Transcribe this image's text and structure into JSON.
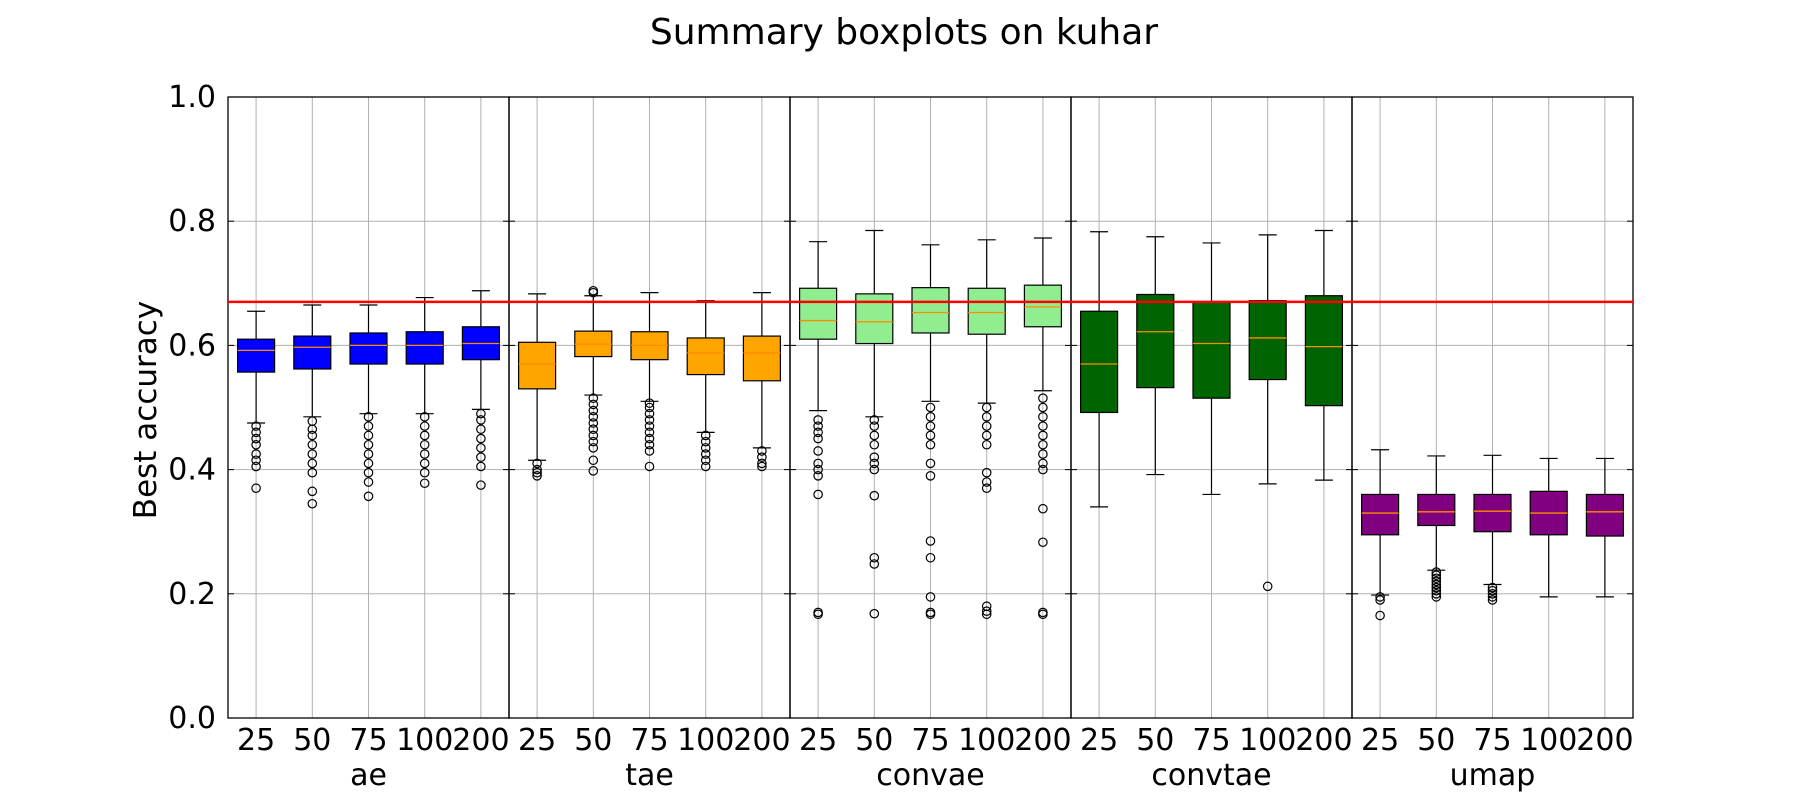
{
  "chart_data": {
    "type": "boxplot",
    "title": "Summary boxplots on kuhar",
    "ylabel": "Best accuracy",
    "xlabel": "",
    "ylim": [
      0,
      1
    ],
    "yticks": [
      "0.0",
      "0.2",
      "0.4",
      "0.6",
      "0.8",
      "1.0"
    ],
    "ytick_values": [
      0,
      0.2,
      0.4,
      0.6,
      0.8,
      1.0
    ],
    "grid": true,
    "reference_line": {
      "y": 0.67,
      "color": "#ff0000"
    },
    "categories": [
      "25",
      "50",
      "75",
      "100",
      "200"
    ],
    "groups": [
      {
        "name": "ae",
        "color": "#0000ff",
        "boxes": [
          {
            "x": "25",
            "whislo": 0.475,
            "q1": 0.557,
            "med": 0.592,
            "q3": 0.61,
            "whishi": 0.655,
            "fliers": [
              0.37,
              0.405,
              0.415,
              0.425,
              0.44,
              0.45,
              0.46,
              0.47
            ]
          },
          {
            "x": "50",
            "whislo": 0.485,
            "q1": 0.562,
            "med": 0.597,
            "q3": 0.615,
            "whishi": 0.665,
            "fliers": [
              0.345,
              0.365,
              0.395,
              0.41,
              0.425,
              0.44,
              0.455,
              0.465,
              0.478
            ]
          },
          {
            "x": "75",
            "whislo": 0.49,
            "q1": 0.57,
            "med": 0.6,
            "q3": 0.62,
            "whishi": 0.665,
            "fliers": [
              0.357,
              0.38,
              0.395,
              0.41,
              0.425,
              0.44,
              0.455,
              0.47,
              0.485
            ]
          },
          {
            "x": "100",
            "whislo": 0.49,
            "q1": 0.57,
            "med": 0.6,
            "q3": 0.622,
            "whishi": 0.677,
            "fliers": [
              0.378,
              0.395,
              0.41,
              0.425,
              0.44,
              0.455,
              0.47,
              0.485
            ]
          },
          {
            "x": "200",
            "whislo": 0.497,
            "q1": 0.577,
            "med": 0.603,
            "q3": 0.63,
            "whishi": 0.688,
            "fliers": [
              0.375,
              0.405,
              0.42,
              0.435,
              0.45,
              0.465,
              0.48,
              0.49
            ]
          }
        ]
      },
      {
        "name": "tae",
        "color": "#ffa500",
        "boxes": [
          {
            "x": "25",
            "whislo": 0.415,
            "q1": 0.53,
            "med": 0.57,
            "q3": 0.605,
            "whishi": 0.683,
            "fliers": [
              0.39,
              0.395,
              0.4,
              0.41
            ]
          },
          {
            "x": "50",
            "whislo": 0.52,
            "q1": 0.582,
            "med": 0.602,
            "q3": 0.623,
            "whishi": 0.68,
            "fliers": [
              0.398,
              0.415,
              0.435,
              0.445,
              0.455,
              0.465,
              0.475,
              0.485,
              0.495,
              0.505,
              0.515,
              0.685,
              0.688
            ]
          },
          {
            "x": "75",
            "whislo": 0.51,
            "q1": 0.577,
            "med": 0.6,
            "q3": 0.622,
            "whishi": 0.685,
            "fliers": [
              0.405,
              0.43,
              0.44,
              0.45,
              0.46,
              0.47,
              0.48,
              0.49,
              0.5,
              0.507
            ]
          },
          {
            "x": "100",
            "whislo": 0.46,
            "q1": 0.553,
            "med": 0.588,
            "q3": 0.612,
            "whishi": 0.672,
            "fliers": [
              0.405,
              0.415,
              0.425,
              0.435,
              0.445,
              0.455
            ]
          },
          {
            "x": "200",
            "whislo": 0.435,
            "q1": 0.543,
            "med": 0.588,
            "q3": 0.615,
            "whishi": 0.685,
            "fliers": [
              0.405,
              0.41,
              0.42,
              0.43
            ]
          }
        ]
      },
      {
        "name": "convae",
        "color": "#90ee90",
        "boxes": [
          {
            "x": "25",
            "whislo": 0.495,
            "q1": 0.61,
            "med": 0.64,
            "q3": 0.692,
            "whishi": 0.767,
            "fliers": [
              0.167,
              0.17,
              0.36,
              0.39,
              0.4,
              0.41,
              0.43,
              0.45,
              0.46,
              0.47,
              0.48
            ]
          },
          {
            "x": "50",
            "whislo": 0.485,
            "q1": 0.603,
            "med": 0.638,
            "q3": 0.683,
            "whishi": 0.785,
            "fliers": [
              0.168,
              0.248,
              0.258,
              0.358,
              0.4,
              0.41,
              0.42,
              0.44,
              0.455,
              0.47,
              0.48
            ]
          },
          {
            "x": "75",
            "whislo": 0.51,
            "q1": 0.62,
            "med": 0.653,
            "q3": 0.693,
            "whishi": 0.762,
            "fliers": [
              0.167,
              0.17,
              0.195,
              0.258,
              0.285,
              0.39,
              0.41,
              0.44,
              0.455,
              0.47,
              0.485,
              0.5
            ]
          },
          {
            "x": "100",
            "whislo": 0.507,
            "q1": 0.618,
            "med": 0.653,
            "q3": 0.692,
            "whishi": 0.77,
            "fliers": [
              0.167,
              0.172,
              0.18,
              0.37,
              0.38,
              0.395,
              0.44,
              0.455,
              0.47,
              0.485,
              0.5
            ]
          },
          {
            "x": "200",
            "whislo": 0.527,
            "q1": 0.63,
            "med": 0.662,
            "q3": 0.697,
            "whishi": 0.773,
            "fliers": [
              0.167,
              0.17,
              0.283,
              0.337,
              0.4,
              0.41,
              0.425,
              0.44,
              0.455,
              0.47,
              0.485,
              0.5,
              0.515
            ]
          }
        ]
      },
      {
        "name": "convtae",
        "color": "#006400",
        "boxes": [
          {
            "x": "25",
            "whislo": 0.34,
            "q1": 0.492,
            "med": 0.57,
            "q3": 0.655,
            "whishi": 0.783,
            "fliers": []
          },
          {
            "x": "50",
            "whislo": 0.392,
            "q1": 0.532,
            "med": 0.622,
            "q3": 0.682,
            "whishi": 0.775,
            "fliers": []
          },
          {
            "x": "75",
            "whislo": 0.36,
            "q1": 0.515,
            "med": 0.603,
            "q3": 0.67,
            "whishi": 0.765,
            "fliers": []
          },
          {
            "x": "100",
            "whislo": 0.377,
            "q1": 0.545,
            "med": 0.612,
            "q3": 0.672,
            "whishi": 0.778,
            "fliers": [
              0.212
            ]
          },
          {
            "x": "200",
            "whislo": 0.383,
            "q1": 0.503,
            "med": 0.598,
            "q3": 0.68,
            "whishi": 0.785,
            "fliers": []
          }
        ]
      },
      {
        "name": "umap",
        "color": "#800080",
        "boxes": [
          {
            "x": "25",
            "whislo": 0.198,
            "q1": 0.295,
            "med": 0.33,
            "q3": 0.36,
            "whishi": 0.432,
            "fliers": [
              0.165,
              0.19,
              0.195
            ]
          },
          {
            "x": "50",
            "whislo": 0.238,
            "q1": 0.31,
            "med": 0.332,
            "q3": 0.36,
            "whishi": 0.422,
            "fliers": [
              0.195,
              0.2,
              0.205,
              0.21,
              0.215,
              0.22,
              0.225,
              0.23,
              0.235
            ]
          },
          {
            "x": "75",
            "whislo": 0.215,
            "q1": 0.3,
            "med": 0.333,
            "q3": 0.36,
            "whishi": 0.423,
            "fliers": [
              0.19,
              0.195,
              0.2,
              0.205,
              0.21
            ]
          },
          {
            "x": "100",
            "whislo": 0.195,
            "q1": 0.295,
            "med": 0.33,
            "q3": 0.365,
            "whishi": 0.418,
            "fliers": []
          },
          {
            "x": "200",
            "whislo": 0.195,
            "q1": 0.293,
            "med": 0.332,
            "q3": 0.36,
            "whishi": 0.418,
            "fliers": []
          }
        ]
      }
    ],
    "median_color": "#ff8c00",
    "grid_color": "#b0b0b0"
  }
}
